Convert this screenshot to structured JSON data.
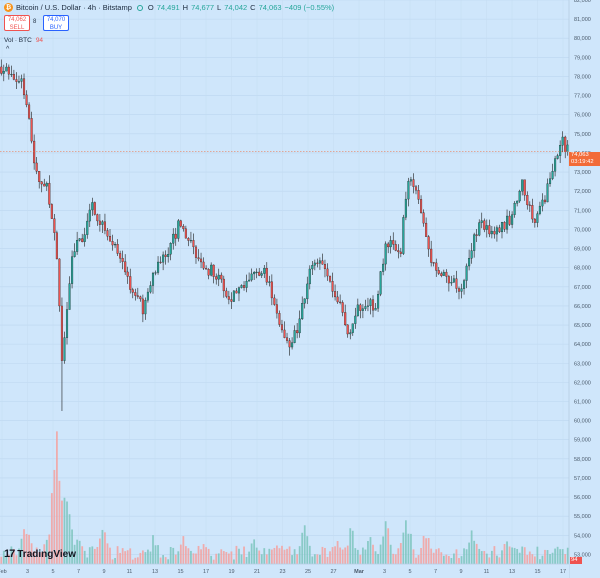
{
  "legend": {
    "symbol": "Bitcoin / U.S. Dollar · 4h · Bitstamp",
    "open_label": "O",
    "open": "74,491",
    "high_label": "H",
    "high": "74,677",
    "low_label": "L",
    "low": "74,042",
    "close_label": "C",
    "close": "74,063",
    "change": "−409 (−0.55%)"
  },
  "trade": {
    "sell_price": "74,062",
    "sell_label": "SELL",
    "spread": "8",
    "buy_price": "74,070",
    "buy_label": "BUY"
  },
  "volume": {
    "label": "Vol · BTC",
    "value": "94",
    "badge": "94"
  },
  "last_price": {
    "price": "74,063",
    "countdown": "03:19:42"
  },
  "branding": {
    "logo_text": "TradingView",
    "logo_mark": "17"
  },
  "colors": {
    "up": "#26a69a",
    "down": "#ef5350",
    "wick": "#1b1b1b",
    "vol_up": "#7cc4bd",
    "vol_down": "#f4a09d",
    "background": "#cfe6fb",
    "price_tag": "#f26b38"
  },
  "chart_data": {
    "type": "candlestick",
    "y_ticks": [
      "82,000",
      "81,000",
      "80,000",
      "79,000",
      "78,000",
      "77,000",
      "76,000",
      "75,000",
      "74,000",
      "73,000",
      "72,000",
      "71,000",
      "70,000",
      "69,000",
      "68,000",
      "67,000",
      "66,000",
      "65,000",
      "64,000",
      "63,000",
      "62,000",
      "61,000",
      "60,000",
      "59,000",
      "58,000",
      "57,000",
      "56,000",
      "55,000",
      "54,000",
      "53,000"
    ],
    "ylim": [
      52500,
      82000
    ],
    "x_ticks": [
      "Feb",
      "3",
      "5",
      "7",
      "9",
      "11",
      "13",
      "15",
      "17",
      "19",
      "21",
      "23",
      "25",
      "27",
      "Mar",
      "3",
      "5",
      "7",
      "9",
      "11",
      "13",
      "15",
      "17"
    ],
    "anchors": [
      [
        0,
        78500
      ],
      [
        8,
        77800
      ],
      [
        10,
        76500
      ],
      [
        14,
        72800
      ],
      [
        18,
        72200
      ],
      [
        22,
        68700
      ],
      [
        24,
        63200
      ],
      [
        26,
        66000
      ],
      [
        28,
        68700
      ],
      [
        32,
        69500
      ],
      [
        36,
        71200
      ],
      [
        42,
        69700
      ],
      [
        48,
        68300
      ],
      [
        52,
        66700
      ],
      [
        56,
        65900
      ],
      [
        60,
        67600
      ],
      [
        66,
        68800
      ],
      [
        70,
        70200
      ],
      [
        74,
        69300
      ],
      [
        80,
        68200
      ],
      [
        86,
        67400
      ],
      [
        90,
        66400
      ],
      [
        94,
        66900
      ],
      [
        100,
        68100
      ],
      [
        104,
        67700
      ],
      [
        108,
        66400
      ],
      [
        110,
        65000
      ],
      [
        114,
        64000
      ],
      [
        118,
        65100
      ],
      [
        122,
        68200
      ],
      [
        126,
        68700
      ],
      [
        130,
        67400
      ],
      [
        134,
        66200
      ],
      [
        138,
        64300
      ],
      [
        140,
        65700
      ],
      [
        144,
        66200
      ],
      [
        148,
        65800
      ],
      [
        152,
        69200
      ],
      [
        158,
        69000
      ],
      [
        160,
        71900
      ],
      [
        162,
        72800
      ],
      [
        166,
        71000
      ],
      [
        170,
        68100
      ],
      [
        176,
        67300
      ],
      [
        182,
        66900
      ],
      [
        186,
        69200
      ],
      [
        190,
        70400
      ],
      [
        196,
        69800
      ],
      [
        202,
        70700
      ],
      [
        206,
        72400
      ],
      [
        210,
        70500
      ],
      [
        214,
        71200
      ],
      [
        218,
        73100
      ],
      [
        222,
        74500
      ],
      [
        224,
        74100
      ]
    ],
    "volume_peaks": [
      [
        4,
        10
      ],
      [
        10,
        28
      ],
      [
        18,
        19
      ],
      [
        22,
        85
      ],
      [
        26,
        55
      ],
      [
        30,
        18
      ],
      [
        40,
        22
      ],
      [
        60,
        16
      ],
      [
        72,
        18
      ],
      [
        80,
        14
      ],
      [
        100,
        16
      ],
      [
        108,
        12
      ],
      [
        120,
        25
      ],
      [
        132,
        14
      ],
      [
        138,
        24
      ],
      [
        146,
        18
      ],
      [
        152,
        30
      ],
      [
        160,
        32
      ],
      [
        168,
        18
      ],
      [
        186,
        22
      ],
      [
        200,
        18
      ],
      [
        220,
        14
      ],
      [
        224,
        6
      ]
    ]
  }
}
